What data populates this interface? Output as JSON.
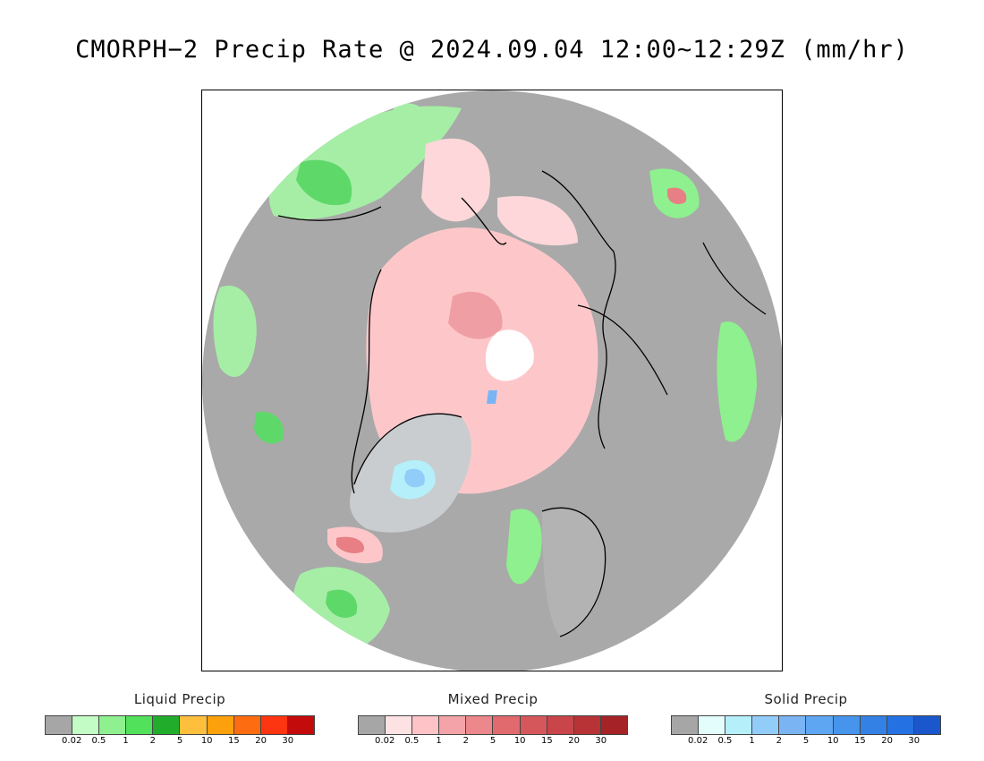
{
  "title": "CMORPH−2 Precip Rate @ 2024.09.04 12:00~12:29Z (mm/hr)",
  "map": {
    "projection": "north-polar-stereographic",
    "background_color": "#a9a9a9",
    "coastline_color": "#000000",
    "regions": [
      {
        "name": "north-pacific-rain-band",
        "class": "liquid",
        "level": "0.5-5"
      },
      {
        "name": "arctic-ocean-mixed-precip",
        "class": "mixed",
        "level": "0.02-2"
      },
      {
        "name": "north-pole-no-data",
        "class": "none",
        "level": ""
      },
      {
        "name": "greenland-snow",
        "class": "solid",
        "level": "0.02-1"
      },
      {
        "name": "north-atlantic-rain",
        "class": "liquid",
        "level": "0.5-2"
      },
      {
        "name": "siberia-east-rain",
        "class": "liquid",
        "level": "0.5-2"
      },
      {
        "name": "canada-west-rain",
        "class": "liquid",
        "level": "0.5-2"
      }
    ]
  },
  "legends": [
    {
      "title": "Liquid Precip",
      "colors": [
        "#a6a6a6",
        "#c3fcc4",
        "#8ef08e",
        "#52e15a",
        "#22ac2c",
        "#fdbf3c",
        "#fca10b",
        "#fd6c11",
        "#fe3511",
        "#c40b0b"
      ],
      "ticks": [
        "0.02",
        "0.5",
        "1",
        "2",
        "5",
        "10",
        "15",
        "20",
        "30"
      ]
    },
    {
      "title": "Mixed Precip",
      "colors": [
        "#a6a6a6",
        "#fde2e4",
        "#fdc3c6",
        "#f4a4a8",
        "#ec878b",
        "#e06a6e",
        "#d5575b",
        "#c84549",
        "#b83336",
        "#a52326"
      ],
      "ticks": [
        "0.02",
        "0.5",
        "1",
        "2",
        "5",
        "10",
        "15",
        "20",
        "30"
      ]
    },
    {
      "title": "Solid Precip",
      "colors": [
        "#a6a6a6",
        "#e3fdfd",
        "#b5eff9",
        "#92cdfa",
        "#7ab4f3",
        "#5ea6f1",
        "#4694eb",
        "#3381e5",
        "#2471e3",
        "#1b57cc"
      ],
      "ticks": [
        "0.02",
        "0.5",
        "1",
        "2",
        "5",
        "10",
        "15",
        "20",
        "30"
      ]
    }
  ]
}
